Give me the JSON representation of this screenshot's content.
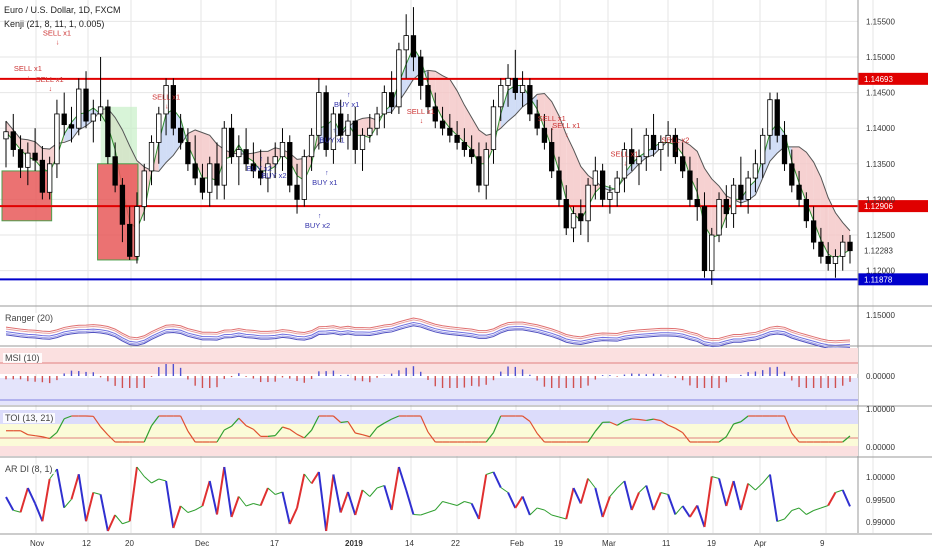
{
  "header": {
    "symbol_line": "Euro / U.S. Dollar, 1D, FXCM",
    "indicator_line": "Kenji (21, 8, 11, 1, 0.005)"
  },
  "colors": {
    "bull": "#ffffff",
    "bear": "#000000",
    "candle_border": "#000000",
    "resistance": "#e00000",
    "support": "#0000cc",
    "ma_line": "#555555",
    "cloud_bear": "#f4c6c6",
    "cloud_bull": "#c6d4f4",
    "cloud_green": "#c8f0c8",
    "buy_text": "#3333aa",
    "sell_text": "#cc3333",
    "grid": "#e6e6e6",
    "axis_bg": "#ffffff"
  },
  "chart_data": {
    "type": "candlestick",
    "y_ticks": [
      "1.15500",
      "1.15000",
      "1.14500",
      "1.14000",
      "1.13500",
      "1.13000",
      "1.12500",
      "1.12000"
    ],
    "ylim": [
      1.117,
      1.158
    ],
    "x_ticks": [
      "Nov",
      "12",
      "20",
      "Dec",
      "17",
      "2019",
      "14",
      "22",
      "Feb",
      "19",
      "Mar",
      "11",
      "19",
      "Apr",
      "9"
    ],
    "horizontal_levels": [
      {
        "label": "1.14693",
        "value": 1.14693,
        "color": "#e00000"
      },
      {
        "label": "1.12906",
        "value": 1.12906,
        "color": "#e00000"
      },
      {
        "label": "1.11878",
        "value": 1.11878,
        "color": "#0000cc"
      }
    ],
    "current_price": {
      "label": "1.12283",
      "value": 1.12283
    },
    "candles": [
      [
        1.1385,
        1.141,
        1.1345,
        1.1395
      ],
      [
        1.1395,
        1.142,
        1.136,
        1.137
      ],
      [
        1.137,
        1.139,
        1.133,
        1.1345
      ],
      [
        1.1345,
        1.138,
        1.132,
        1.1365
      ],
      [
        1.1365,
        1.14,
        1.134,
        1.1355
      ],
      [
        1.1355,
        1.1375,
        1.13,
        1.131
      ],
      [
        1.131,
        1.136,
        1.13,
        1.135
      ],
      [
        1.135,
        1.144,
        1.133,
        1.142
      ],
      [
        1.142,
        1.145,
        1.139,
        1.1405
      ],
      [
        1.1405,
        1.143,
        1.138,
        1.14
      ],
      [
        1.14,
        1.147,
        1.139,
        1.1455
      ],
      [
        1.1455,
        1.148,
        1.14,
        1.141
      ],
      [
        1.141,
        1.144,
        1.138,
        1.142
      ],
      [
        1.142,
        1.15,
        1.141,
        1.143
      ],
      [
        1.143,
        1.144,
        1.135,
        1.136
      ],
      [
        1.136,
        1.138,
        1.131,
        1.132
      ],
      [
        1.132,
        1.133,
        1.124,
        1.1265
      ],
      [
        1.1265,
        1.129,
        1.1215,
        1.122
      ],
      [
        1.122,
        1.131,
        1.121,
        1.129
      ],
      [
        1.129,
        1.135,
        1.127,
        1.134
      ],
      [
        1.134,
        1.139,
        1.132,
        1.138
      ],
      [
        1.138,
        1.143,
        1.135,
        1.142
      ],
      [
        1.142,
        1.147,
        1.139,
        1.146
      ],
      [
        1.146,
        1.147,
        1.139,
        1.14
      ],
      [
        1.14,
        1.142,
        1.137,
        1.138
      ],
      [
        1.138,
        1.14,
        1.134,
        1.135
      ],
      [
        1.135,
        1.139,
        1.132,
        1.133
      ],
      [
        1.133,
        1.135,
        1.13,
        1.131
      ],
      [
        1.131,
        1.136,
        1.129,
        1.135
      ],
      [
        1.135,
        1.138,
        1.13,
        1.132
      ],
      [
        1.132,
        1.141,
        1.13,
        1.14
      ],
      [
        1.14,
        1.142,
        1.135,
        1.136
      ],
      [
        1.136,
        1.139,
        1.132,
        1.137
      ],
      [
        1.137,
        1.14,
        1.134,
        1.135
      ],
      [
        1.135,
        1.138,
        1.133,
        1.134
      ],
      [
        1.134,
        1.137,
        1.132,
        1.133
      ],
      [
        1.133,
        1.136,
        1.131,
        1.135
      ],
      [
        1.135,
        1.138,
        1.133,
        1.136
      ],
      [
        1.136,
        1.14,
        1.134,
        1.138
      ],
      [
        1.138,
        1.139,
        1.131,
        1.132
      ],
      [
        1.132,
        1.135,
        1.128,
        1.13
      ],
      [
        1.13,
        1.137,
        1.129,
        1.136
      ],
      [
        1.136,
        1.14,
        1.134,
        1.139
      ],
      [
        1.139,
        1.147,
        1.137,
        1.145
      ],
      [
        1.145,
        1.146,
        1.136,
        1.137
      ],
      [
        1.137,
        1.143,
        1.135,
        1.142
      ],
      [
        1.142,
        1.144,
        1.138,
        1.139
      ],
      [
        1.139,
        1.142,
        1.137,
        1.141
      ],
      [
        1.141,
        1.143,
        1.135,
        1.137
      ],
      [
        1.137,
        1.14,
        1.134,
        1.139
      ],
      [
        1.139,
        1.142,
        1.138,
        1.14
      ],
      [
        1.14,
        1.143,
        1.139,
        1.142
      ],
      [
        1.142,
        1.146,
        1.14,
        1.145
      ],
      [
        1.145,
        1.148,
        1.142,
        1.143
      ],
      [
        1.143,
        1.152,
        1.142,
        1.151
      ],
      [
        1.151,
        1.156,
        1.147,
        1.153
      ],
      [
        1.153,
        1.157,
        1.148,
        1.15
      ],
      [
        1.15,
        1.151,
        1.144,
        1.146
      ],
      [
        1.146,
        1.148,
        1.142,
        1.143
      ],
      [
        1.143,
        1.145,
        1.14,
        1.141
      ],
      [
        1.141,
        1.143,
        1.139,
        1.14
      ],
      [
        1.14,
        1.142,
        1.138,
        1.139
      ],
      [
        1.139,
        1.141,
        1.137,
        1.138
      ],
      [
        1.138,
        1.14,
        1.136,
        1.137
      ],
      [
        1.137,
        1.139,
        1.135,
        1.136
      ],
      [
        1.136,
        1.138,
        1.131,
        1.132
      ],
      [
        1.132,
        1.138,
        1.13,
        1.137
      ],
      [
        1.137,
        1.144,
        1.135,
        1.143
      ],
      [
        1.143,
        1.147,
        1.141,
        1.146
      ],
      [
        1.146,
        1.149,
        1.143,
        1.147
      ],
      [
        1.147,
        1.151,
        1.144,
        1.145
      ],
      [
        1.145,
        1.148,
        1.143,
        1.146
      ],
      [
        1.146,
        1.147,
        1.141,
        1.142
      ],
      [
        1.142,
        1.144,
        1.139,
        1.14
      ],
      [
        1.14,
        1.142,
        1.137,
        1.138
      ],
      [
        1.138,
        1.14,
        1.133,
        1.134
      ],
      [
        1.134,
        1.136,
        1.129,
        1.13
      ],
      [
        1.13,
        1.132,
        1.125,
        1.126
      ],
      [
        1.126,
        1.129,
        1.124,
        1.128
      ],
      [
        1.128,
        1.13,
        1.125,
        1.127
      ],
      [
        1.127,
        1.133,
        1.124,
        1.132
      ],
      [
        1.132,
        1.136,
        1.13,
        1.134
      ],
      [
        1.134,
        1.135,
        1.129,
        1.13
      ],
      [
        1.13,
        1.132,
        1.128,
        1.131
      ],
      [
        1.131,
        1.134,
        1.129,
        1.133
      ],
      [
        1.133,
        1.138,
        1.131,
        1.137
      ],
      [
        1.137,
        1.14,
        1.134,
        1.135
      ],
      [
        1.135,
        1.137,
        1.132,
        1.136
      ],
      [
        1.136,
        1.14,
        1.134,
        1.139
      ],
      [
        1.139,
        1.142,
        1.136,
        1.137
      ],
      [
        1.137,
        1.139,
        1.134,
        1.138
      ],
      [
        1.138,
        1.141,
        1.136,
        1.139
      ],
      [
        1.139,
        1.14,
        1.135,
        1.136
      ],
      [
        1.136,
        1.138,
        1.133,
        1.134
      ],
      [
        1.134,
        1.136,
        1.129,
        1.13
      ],
      [
        1.13,
        1.133,
        1.127,
        1.129
      ],
      [
        1.129,
        1.131,
        1.119,
        1.12
      ],
      [
        1.12,
        1.126,
        1.118,
        1.125
      ],
      [
        1.125,
        1.131,
        1.124,
        1.13
      ],
      [
        1.13,
        1.132,
        1.126,
        1.128
      ],
      [
        1.128,
        1.133,
        1.126,
        1.132
      ],
      [
        1.132,
        1.136,
        1.129,
        1.13
      ],
      [
        1.13,
        1.134,
        1.128,
        1.133
      ],
      [
        1.133,
        1.137,
        1.131,
        1.135
      ],
      [
        1.135,
        1.14,
        1.133,
        1.139
      ],
      [
        1.139,
        1.145,
        1.137,
        1.144
      ],
      [
        1.144,
        1.145,
        1.138,
        1.139
      ],
      [
        1.139,
        1.141,
        1.134,
        1.135
      ],
      [
        1.135,
        1.137,
        1.131,
        1.132
      ],
      [
        1.132,
        1.134,
        1.129,
        1.13
      ],
      [
        1.13,
        1.131,
        1.126,
        1.127
      ],
      [
        1.127,
        1.129,
        1.123,
        1.124
      ],
      [
        1.124,
        1.126,
        1.121,
        1.122
      ],
      [
        1.122,
        1.124,
        1.12,
        1.121
      ],
      [
        1.121,
        1.123,
        1.119,
        1.122
      ],
      [
        1.122,
        1.125,
        1.12,
        1.124
      ],
      [
        1.124,
        1.125,
        1.121,
        1.1228
      ]
    ],
    "signals": [
      {
        "label": "SELL x1",
        "i": 3,
        "price": 1.148,
        "side": "sell"
      },
      {
        "label": "SELL x1",
        "i": 6,
        "price": 1.1465,
        "side": "sell"
      },
      {
        "label": "SELL x1",
        "i": 7,
        "price": 1.153,
        "side": "sell"
      },
      {
        "label": "SELL x1",
        "i": 22,
        "price": 1.144,
        "side": "sell"
      },
      {
        "label": "BUY x2",
        "i": 35,
        "price": 1.134,
        "side": "buy"
      },
      {
        "label": "BUY x2",
        "i": 37,
        "price": 1.133,
        "side": "buy"
      },
      {
        "label": "BUY x2",
        "i": 43,
        "price": 1.126,
        "side": "buy"
      },
      {
        "label": "BUY x1",
        "i": 44,
        "price": 1.132,
        "side": "buy"
      },
      {
        "label": "BUY x1",
        "i": 45,
        "price": 1.138,
        "side": "buy"
      },
      {
        "label": "BUY x1",
        "i": 47,
        "price": 1.143,
        "side": "buy"
      },
      {
        "label": "SELL x1",
        "i": 57,
        "price": 1.142,
        "side": "sell"
      },
      {
        "label": "SELL x1",
        "i": 75,
        "price": 1.141,
        "side": "sell"
      },
      {
        "label": "SELL x1",
        "i": 77,
        "price": 1.14,
        "side": "sell"
      },
      {
        "label": "SELL x1",
        "i": 85,
        "price": 1.136,
        "side": "sell"
      },
      {
        "label": "SELL x2",
        "i": 92,
        "price": 1.138,
        "side": "sell"
      }
    ],
    "panes": [
      {
        "label": "Ranger (20)",
        "y_ticks": [
          "1.15000"
        ]
      },
      {
        "label": "MSI (10)",
        "y_ticks": [
          "0.00000"
        ]
      },
      {
        "label": "TOI (13, 21)",
        "y_ticks": [
          "1.00000",
          "0.00000"
        ]
      },
      {
        "label": "AR DI (8, 1)",
        "y_ticks": [
          "1.00000",
          "0.99500",
          "0.99000"
        ]
      }
    ]
  }
}
